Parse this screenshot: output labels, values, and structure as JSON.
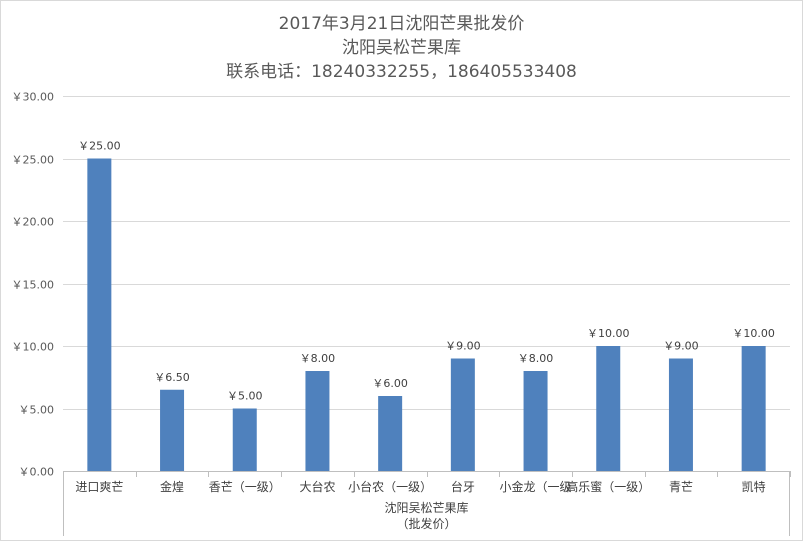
{
  "chart": {
    "title_lines": [
      "2017年3月21日沈阳芒果批发价",
      "沈阳吴松芒果库",
      "联系电话：18240332255，186405533408"
    ],
    "group_label_lines": [
      "沈阳吴松芒果库",
      "（批发价）"
    ]
  },
  "chart_data": {
    "type": "bar",
    "categories": [
      "进口爽芒",
      "金煌",
      "香芒（一级）",
      "大台农",
      "小台农（一级）",
      "台牙",
      "小金龙（一级",
      "高乐蜜（一级）",
      "青芒",
      "凯特"
    ],
    "values": [
      25.0,
      6.5,
      5.0,
      8.0,
      6.0,
      9.0,
      8.0,
      10.0,
      9.0,
      10.0
    ],
    "data_labels": [
      "￥25.00",
      "￥6.50",
      "￥5.00",
      "￥8.00",
      "￥6.00",
      "￥9.00",
      "￥8.00",
      "￥10.00",
      "￥9.00",
      "￥10.00"
    ],
    "yticks": [
      0,
      5,
      10,
      15,
      20,
      25,
      30
    ],
    "ytick_labels": [
      "￥0.00",
      "￥5.00",
      "￥10.00",
      "￥15.00",
      "￥20.00",
      "￥25.00",
      "￥30.00"
    ],
    "ylim": [
      0,
      30
    ],
    "grid": true,
    "legend": "none",
    "bar_color": "#4f81bd",
    "grid_color": "#d9d9d9",
    "text_color": "#595959"
  }
}
